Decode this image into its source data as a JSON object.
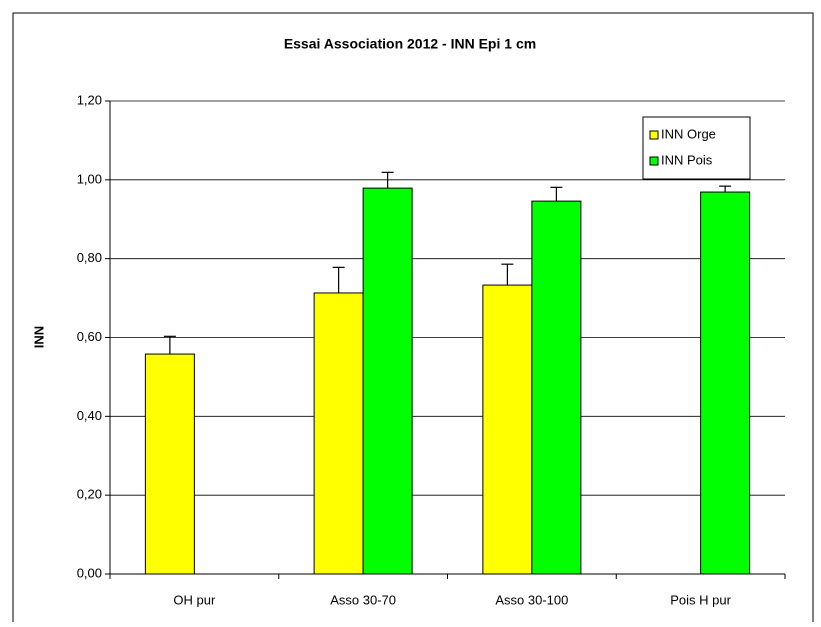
{
  "chart_data": {
    "type": "bar",
    "title": "Essai Association 2012 - INN Epi 1 cm",
    "ylabel": "INN",
    "categories": [
      "OH pur",
      "Asso 30-70",
      "Asso 30-100",
      "Pois H pur"
    ],
    "series": [
      {
        "name": "INN Orge",
        "color": "#ffff00",
        "values": [
          0.558,
          0.713,
          0.733,
          0
        ],
        "errors": [
          0.045,
          0.065,
          0.053,
          null
        ]
      },
      {
        "name": "INN Pois",
        "color": "#00ff00",
        "values": [
          0,
          0.979,
          0.946,
          0.969
        ],
        "errors": [
          null,
          0.04,
          0.035,
          0.015
        ]
      }
    ],
    "ylim": [
      0,
      1.2
    ],
    "yticks": [
      {
        "value": 0,
        "label": "0,00"
      },
      {
        "value": 0.2,
        "label": "0,20"
      },
      {
        "value": 0.4,
        "label": "0,40"
      },
      {
        "value": 0.6,
        "label": "0,60"
      },
      {
        "value": 0.8,
        "label": "0,80"
      },
      {
        "value": 1,
        "label": "1,00"
      },
      {
        "value": 1.2,
        "label": "1,20"
      }
    ],
    "grid": true,
    "legend": "top-right"
  }
}
